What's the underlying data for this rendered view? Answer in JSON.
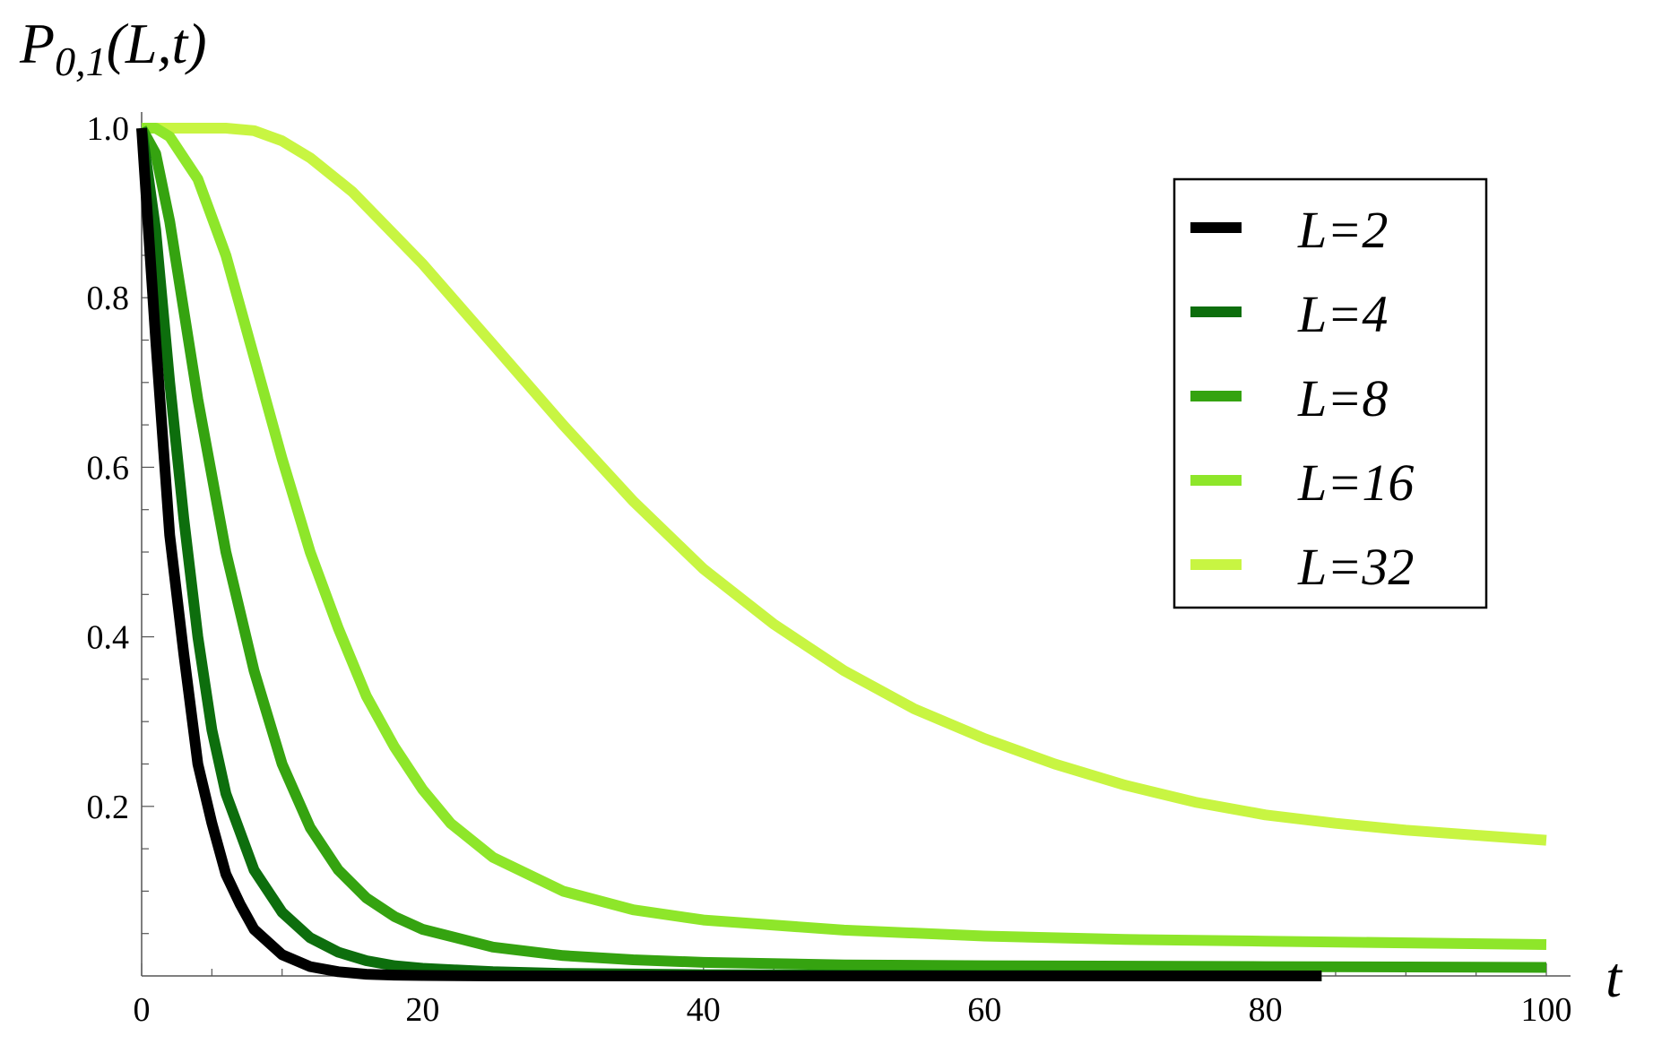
{
  "chart_data": {
    "type": "line",
    "ylabel": "P0,1(L,t)",
    "ylabel_parts": {
      "main": "P",
      "sub": "0,1",
      "args": "(L,t)"
    },
    "xlabel": "t",
    "xlim": [
      0,
      100
    ],
    "ylim": [
      0,
      1.0
    ],
    "x_ticks": [
      "0",
      "20",
      "40",
      "60",
      "80",
      "100"
    ],
    "y_ticks": [
      "0.2",
      "0.4",
      "0.6",
      "0.8",
      "1.0"
    ],
    "grid": false,
    "legend_position": "top-right",
    "series": [
      {
        "name": "L=2",
        "color": "#000000",
        "x": [
          0,
          1,
          2,
          3,
          4,
          5,
          6,
          7,
          8,
          10,
          12,
          14,
          16,
          18,
          20,
          25,
          30,
          40,
          60,
          84
        ],
        "y": [
          1.0,
          0.75,
          0.52,
          0.38,
          0.25,
          0.18,
          0.12,
          0.085,
          0.055,
          0.025,
          0.011,
          0.005,
          0.002,
          0.001,
          0.0005,
          0.0,
          0.0,
          0.0,
          0.0,
          0.0
        ]
      },
      {
        "name": "L=4",
        "color": "#0d6e0d",
        "x": [
          0,
          1,
          2,
          3,
          4,
          5,
          6,
          8,
          10,
          12,
          14,
          16,
          18,
          20,
          25,
          30,
          40,
          50,
          60,
          84
        ],
        "y": [
          1.0,
          0.88,
          0.7,
          0.54,
          0.4,
          0.29,
          0.215,
          0.125,
          0.075,
          0.045,
          0.028,
          0.018,
          0.012,
          0.009,
          0.005,
          0.003,
          0.0015,
          0.001,
          0.0005,
          0.0
        ]
      },
      {
        "name": "L=8",
        "color": "#35a310",
        "x": [
          0,
          1,
          2,
          4,
          6,
          8,
          10,
          12,
          14,
          16,
          18,
          20,
          25,
          30,
          35,
          40,
          50,
          60,
          80,
          100
        ],
        "y": [
          1.0,
          0.97,
          0.89,
          0.68,
          0.5,
          0.36,
          0.25,
          0.175,
          0.125,
          0.092,
          0.07,
          0.055,
          0.034,
          0.024,
          0.019,
          0.016,
          0.013,
          0.012,
          0.011,
          0.01
        ]
      },
      {
        "name": "L=16",
        "color": "#8ee62a",
        "x": [
          0,
          1,
          2,
          4,
          6,
          8,
          10,
          12,
          14,
          16,
          18,
          20,
          22,
          25,
          30,
          35,
          40,
          50,
          60,
          70,
          80,
          100
        ],
        "y": [
          1.0,
          1.0,
          0.99,
          0.94,
          0.85,
          0.73,
          0.61,
          0.5,
          0.41,
          0.33,
          0.27,
          0.22,
          0.18,
          0.14,
          0.1,
          0.078,
          0.066,
          0.054,
          0.047,
          0.043,
          0.041,
          0.037
        ]
      },
      {
        "name": "L=32",
        "color": "#c8f542",
        "x": [
          0,
          2,
          4,
          6,
          8,
          10,
          12,
          15,
          20,
          25,
          30,
          35,
          40,
          45,
          50,
          55,
          60,
          65,
          70,
          75,
          80,
          85,
          90,
          95,
          100
        ],
        "y": [
          1.0,
          1.0,
          1.0,
          1.0,
          0.997,
          0.985,
          0.965,
          0.925,
          0.84,
          0.745,
          0.65,
          0.56,
          0.48,
          0.415,
          0.36,
          0.315,
          0.28,
          0.25,
          0.225,
          0.205,
          0.19,
          0.18,
          0.172,
          0.166,
          0.16
        ]
      }
    ]
  }
}
